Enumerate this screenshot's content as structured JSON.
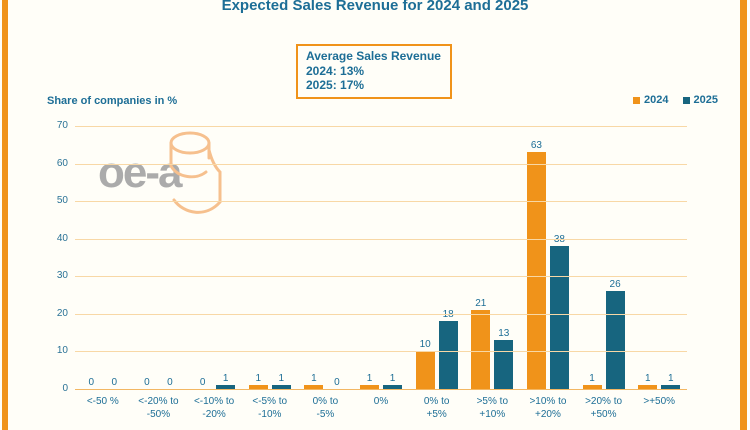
{
  "header": {
    "title": "Expected Sales Revenue for 2024 and 2025"
  },
  "average_box": {
    "line1": "Average Sales Revenue",
    "line2": "2024: 13%",
    "line3": "2025: 17%"
  },
  "axis_label": "Share of companies in %",
  "logo": {
    "text": "oe-a"
  },
  "legend": [
    {
      "label": "2024",
      "color": "#F0931A"
    },
    {
      "label": "2025",
      "color": "#17657F"
    }
  ],
  "colors": {
    "orange": "#F0931A",
    "teal_bar": "#17657F",
    "teal_text": "#1D6E96",
    "gridline": "#F8D8A6",
    "background": "#FFFEF8",
    "logo_gray": "#ABABAB",
    "logo_orange": "#F6C08E"
  },
  "chart_data": {
    "type": "bar",
    "title": "Expected Sales Revenue for 2024 and 2025",
    "xlabel": "",
    "ylabel": "Share of companies in %",
    "ylim": [
      0,
      70
    ],
    "ytick_step": 10,
    "grid": true,
    "legend_position": "top-right",
    "categories": [
      "<-50 %",
      "<-20% to\n-50%",
      "<-10% to\n-20%",
      "<-5% to\n-10%",
      "0% to\n-5%",
      "0%",
      "0% to\n+5%",
      ">5% to\n+10%",
      ">10% to\n+20%",
      ">20% to\n+50%",
      ">+50%"
    ],
    "series": [
      {
        "name": "2024",
        "color": "#F0931A",
        "values": [
          0,
          0,
          0,
          1,
          1,
          1,
          10,
          21,
          63,
          1,
          1
        ]
      },
      {
        "name": "2025",
        "color": "#17657F",
        "values": [
          0,
          0,
          1,
          1,
          0,
          1,
          18,
          13,
          38,
          26,
          1
        ]
      }
    ],
    "annotations": {
      "average_2024": "13%",
      "average_2025": "17%"
    }
  }
}
